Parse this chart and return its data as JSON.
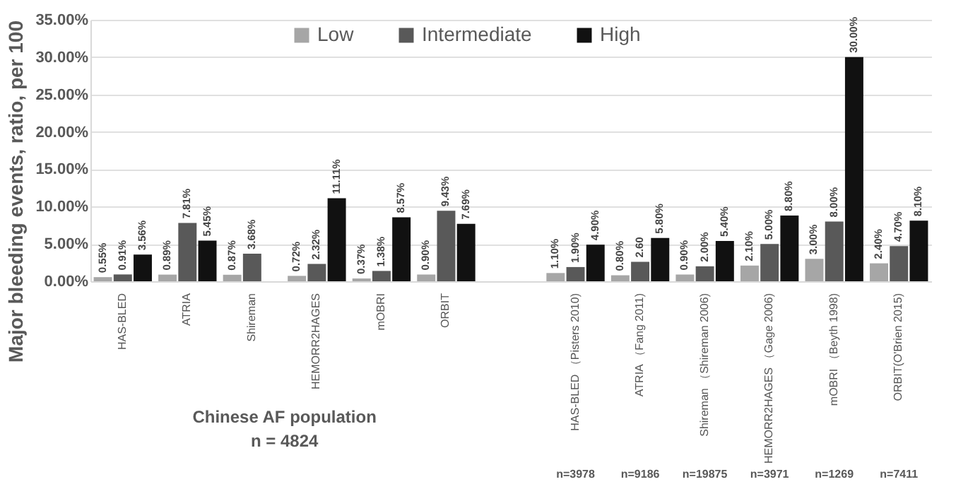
{
  "chart_data": {
    "type": "bar",
    "ylabel": "Major bleeding events, ratio, per 100",
    "categories": [
      "HAS-BLED",
      "ATRIA",
      "Shireman",
      "HEMORR2HAGES",
      "mOBRI",
      "ORBIT",
      null,
      "HAS-BLED （Pisters 2010)",
      "ATRIA （Fang 2011)",
      "Shireman （Shireman 2006)",
      "HEMORR2HAGES （Gage 2006)",
      "mOBRI （Beyth 1998)",
      "ORBIT(O'Brien 2015)"
    ],
    "series": [
      {
        "name": "Low",
        "color": "#a6a6a6",
        "values": [
          0.55,
          0.89,
          0.87,
          0.72,
          0.37,
          0.9,
          null,
          1.1,
          0.8,
          0.9,
          2.1,
          3.0,
          2.4
        ],
        "value_labels": [
          "0.55%",
          "0.89%",
          "0.87%",
          "0.72%",
          "0.37%",
          "0.90%",
          null,
          "1.10%",
          "0.80%",
          "0.90%",
          "2.10%",
          "3.00%",
          "2.40%"
        ]
      },
      {
        "name": "Intermediate",
        "color": "#595959",
        "values": [
          0.91,
          7.81,
          3.68,
          2.32,
          1.38,
          9.43,
          null,
          1.9,
          2.6,
          2.0,
          5.0,
          8.0,
          4.7
        ],
        "value_labels": [
          "0.91%",
          "7.81%",
          "3.68%",
          "2.32%",
          "1.38%",
          "9.43%",
          null,
          "1.90%",
          "2.60",
          "2.00%",
          "5.00%",
          "8.00%",
          "4.70%"
        ]
      },
      {
        "name": "High",
        "color": "#111111",
        "values": [
          3.56,
          5.45,
          null,
          11.11,
          8.57,
          7.69,
          null,
          4.9,
          5.8,
          5.4,
          8.8,
          30.0,
          8.1
        ],
        "value_labels": [
          "3.56%",
          "5.45%",
          null,
          "11.11%",
          "8.57%",
          "7.69%",
          null,
          "4.90%",
          "5.80%",
          "5.40%",
          "8.80%",
          "30.00%",
          "8.10%"
        ]
      }
    ],
    "ylim": [
      0,
      35
    ],
    "yticks": [
      {
        "value": 0,
        "label": "0.00%"
      },
      {
        "value": 5,
        "label": "5.00%"
      },
      {
        "value": 10,
        "label": "10.00%"
      },
      {
        "value": 15,
        "label": "15.00%"
      },
      {
        "value": 20,
        "label": "20.00%"
      },
      {
        "value": 25,
        "label": "25.00%"
      },
      {
        "value": 30,
        "label": "30.00%"
      },
      {
        "value": 35,
        "label": "35.00%"
      }
    ],
    "grid": "y",
    "legend": "top",
    "annotations": [
      "Chinese AF population",
      "n = 4824",
      "n=3978",
      "n=9186",
      "n=19875",
      "n=3971",
      "n=1269",
      "n=7411"
    ]
  }
}
